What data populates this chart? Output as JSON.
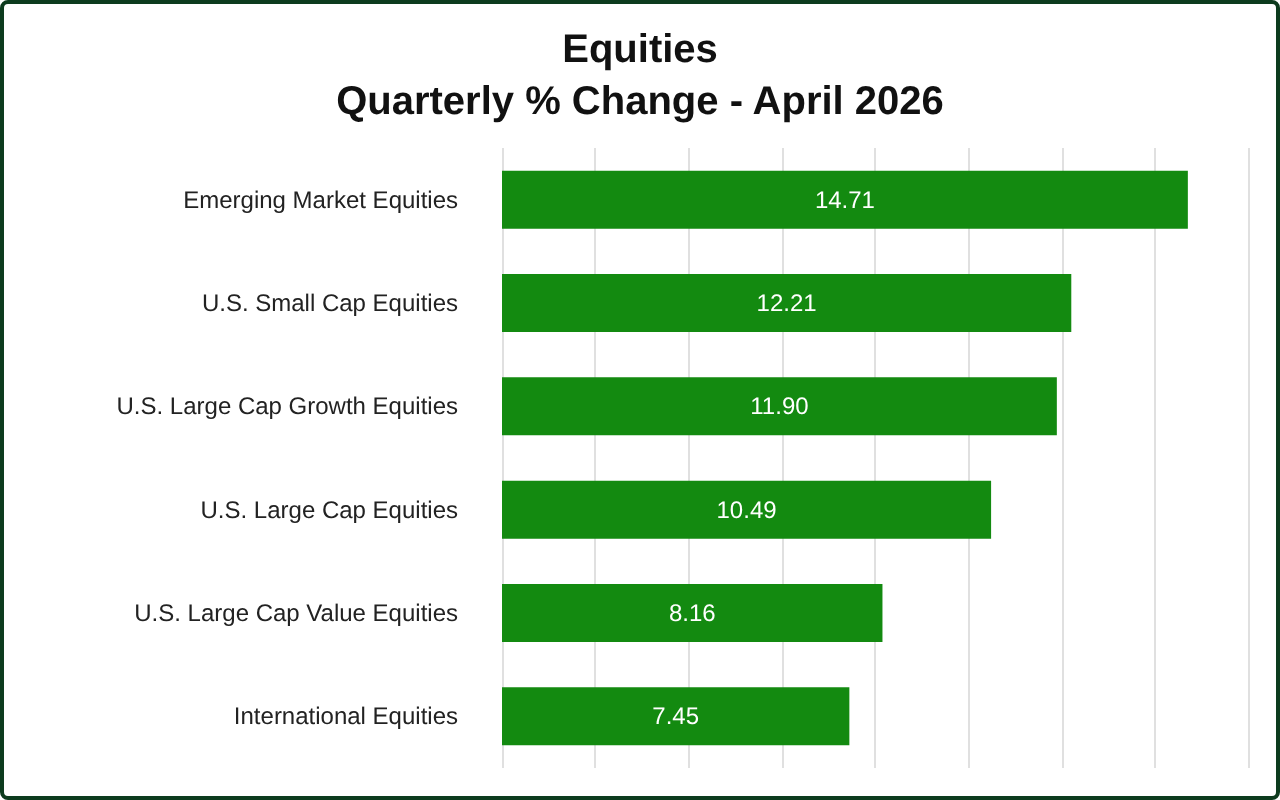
{
  "chart_data": {
    "type": "bar",
    "orientation": "horizontal",
    "title": "Equities",
    "subtitle": "Quarterly % Change - April 2026",
    "categories": [
      "Emerging Market Equities",
      "U.S. Small Cap Equities",
      "U.S. Large Cap Growth Equities",
      "U.S. Large Cap Equities",
      "U.S. Large Cap Value Equities",
      "International Equities"
    ],
    "values": [
      14.71,
      12.21,
      11.9,
      10.49,
      8.16,
      7.45
    ],
    "value_labels": [
      "14.71",
      "12.21",
      "11.90",
      "10.49",
      "8.16",
      "7.45"
    ],
    "color": "#138a10",
    "xlim": [
      0,
      16
    ],
    "xticks": [
      {
        "value": 0,
        "label": null
      },
      {
        "value": 2,
        "label": null
      },
      {
        "value": 4,
        "label": null
      },
      {
        "value": 6,
        "label": null
      },
      {
        "value": 8,
        "label": null
      },
      {
        "value": 10,
        "label": null
      },
      {
        "value": 12,
        "label": null
      },
      {
        "value": 14,
        "label": null
      },
      {
        "value": 16,
        "label": null
      }
    ],
    "grid": "x",
    "tick_labels": "y"
  }
}
